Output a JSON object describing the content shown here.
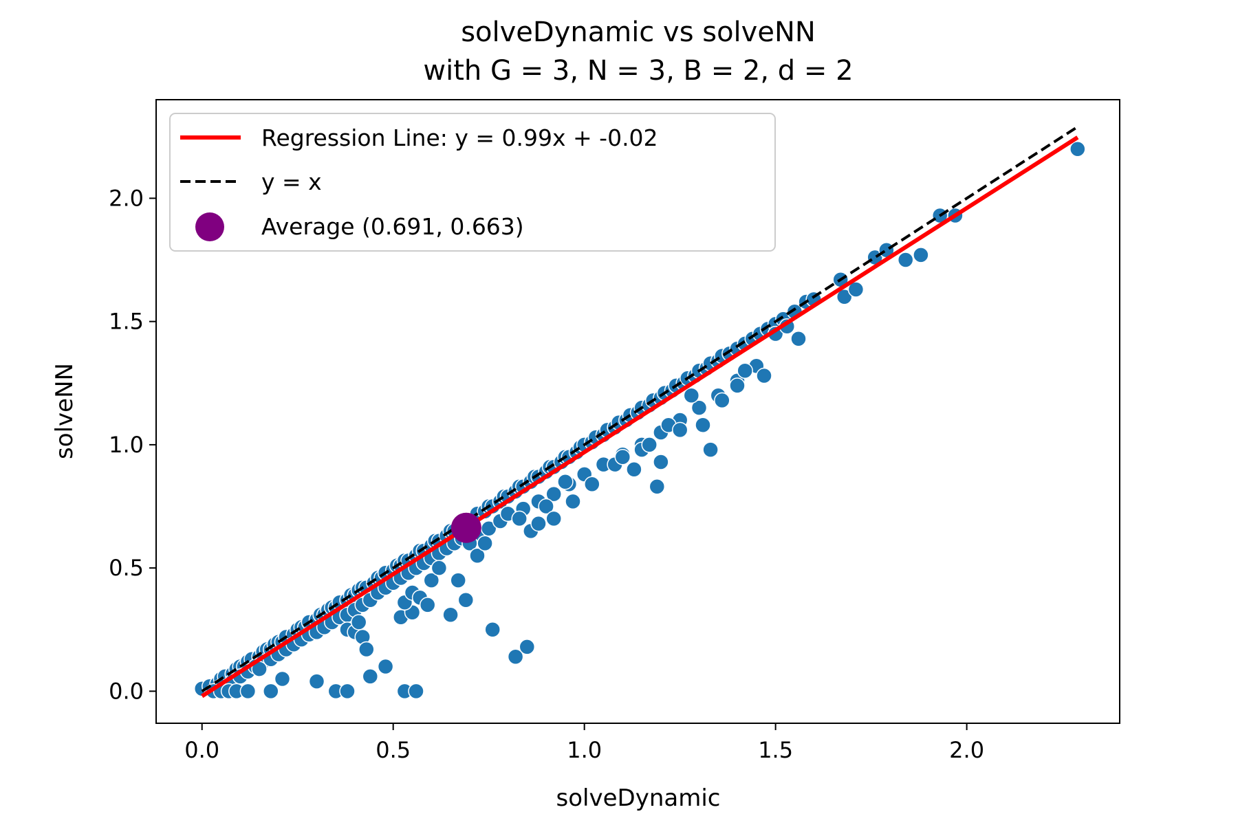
{
  "chart_data": {
    "type": "scatter",
    "title": "solveDynamic vs solveNN",
    "subtitle": "with G = 3, N = 3, B = 2, d = 2",
    "xlabel": "solveDynamic",
    "ylabel": "solveNN",
    "xlim": [
      -0.12,
      2.4
    ],
    "ylim": [
      -0.13,
      2.4
    ],
    "xticks": [
      0.0,
      0.5,
      1.0,
      1.5,
      2.0
    ],
    "yticks": [
      0.0,
      0.5,
      1.0,
      1.5,
      2.0
    ],
    "xtick_labels": [
      "0.0",
      "0.5",
      "1.0",
      "1.5",
      "2.0"
    ],
    "ytick_labels": [
      "0.0",
      "0.5",
      "1.0",
      "1.5",
      "2.0"
    ],
    "grid": false,
    "legend_position": "top-left",
    "colors": {
      "points": "#1f77b4",
      "point_edge": "#ffffff",
      "regression": "#ff0000",
      "identity": "#000000",
      "average": "#800080"
    },
    "regression": {
      "label": "Regression Line: y = 0.99x + -0.02",
      "slope": 0.99,
      "intercept": -0.02,
      "x_range": [
        0.0,
        2.29
      ]
    },
    "identity": {
      "label": "y = x",
      "x_range": [
        0.0,
        2.29
      ]
    },
    "average": {
      "label": "Average (0.691, 0.663)",
      "x": 0.691,
      "y": 0.663
    },
    "series": [
      {
        "points": [
          [
            0.0,
            0.01
          ],
          [
            0.02,
            0.02
          ],
          [
            0.04,
            0.03
          ],
          [
            0.05,
            0.05
          ],
          [
            0.06,
            0.06
          ],
          [
            0.08,
            0.07
          ],
          [
            0.09,
            0.09
          ],
          [
            0.1,
            0.1
          ],
          [
            0.11,
            0.1
          ],
          [
            0.12,
            0.12
          ],
          [
            0.13,
            0.13
          ],
          [
            0.15,
            0.14
          ],
          [
            0.16,
            0.16
          ],
          [
            0.17,
            0.17
          ],
          [
            0.18,
            0.17
          ],
          [
            0.19,
            0.19
          ],
          [
            0.2,
            0.2
          ],
          [
            0.21,
            0.2
          ],
          [
            0.22,
            0.22
          ],
          [
            0.24,
            0.23
          ],
          [
            0.25,
            0.25
          ],
          [
            0.26,
            0.26
          ],
          [
            0.27,
            0.26
          ],
          [
            0.28,
            0.28
          ],
          [
            0.3,
            0.29
          ],
          [
            0.31,
            0.31
          ],
          [
            0.32,
            0.31
          ],
          [
            0.33,
            0.33
          ],
          [
            0.34,
            0.34
          ],
          [
            0.35,
            0.34
          ],
          [
            0.36,
            0.36
          ],
          [
            0.38,
            0.37
          ],
          [
            0.39,
            0.39
          ],
          [
            0.4,
            0.39
          ],
          [
            0.41,
            0.41
          ],
          [
            0.42,
            0.42
          ],
          [
            0.43,
            0.42
          ],
          [
            0.45,
            0.44
          ],
          [
            0.46,
            0.46
          ],
          [
            0.47,
            0.46
          ],
          [
            0.48,
            0.48
          ],
          [
            0.5,
            0.49
          ],
          [
            0.51,
            0.51
          ],
          [
            0.52,
            0.51
          ],
          [
            0.53,
            0.53
          ],
          [
            0.54,
            0.53
          ],
          [
            0.56,
            0.55
          ],
          [
            0.57,
            0.57
          ],
          [
            0.58,
            0.57
          ],
          [
            0.6,
            0.59
          ],
          [
            0.61,
            0.61
          ],
          [
            0.62,
            0.61
          ],
          [
            0.64,
            0.63
          ],
          [
            0.65,
            0.65
          ],
          [
            0.66,
            0.65
          ],
          [
            0.68,
            0.67
          ],
          [
            0.7,
            0.69
          ],
          [
            0.71,
            0.7
          ],
          [
            0.72,
            0.72
          ],
          [
            0.74,
            0.73
          ],
          [
            0.75,
            0.75
          ],
          [
            0.76,
            0.75
          ],
          [
            0.78,
            0.77
          ],
          [
            0.79,
            0.79
          ],
          [
            0.8,
            0.79
          ],
          [
            0.82,
            0.81
          ],
          [
            0.83,
            0.83
          ],
          [
            0.84,
            0.83
          ],
          [
            0.86,
            0.85
          ],
          [
            0.87,
            0.87
          ],
          [
            0.88,
            0.87
          ],
          [
            0.9,
            0.89
          ],
          [
            0.91,
            0.91
          ],
          [
            0.92,
            0.91
          ],
          [
            0.94,
            0.93
          ],
          [
            0.95,
            0.95
          ],
          [
            0.96,
            0.95
          ],
          [
            0.98,
            0.97
          ],
          [
            0.99,
            0.99
          ],
          [
            1.0,
            1.0
          ],
          [
            1.02,
            1.01
          ],
          [
            1.03,
            1.03
          ],
          [
            1.05,
            1.04
          ],
          [
            1.06,
            1.06
          ],
          [
            1.08,
            1.07
          ],
          [
            1.09,
            1.09
          ],
          [
            1.11,
            1.1
          ],
          [
            1.12,
            1.12
          ],
          [
            1.14,
            1.13
          ],
          [
            1.15,
            1.15
          ],
          [
            1.17,
            1.16
          ],
          [
            1.18,
            1.18
          ],
          [
            1.2,
            1.19
          ],
          [
            1.21,
            1.21
          ],
          [
            1.23,
            1.22
          ],
          [
            1.24,
            1.24
          ],
          [
            1.26,
            1.25
          ],
          [
            1.27,
            1.27
          ],
          [
            1.29,
            1.28
          ],
          [
            1.3,
            1.3
          ],
          [
            1.32,
            1.31
          ],
          [
            1.33,
            1.33
          ],
          [
            1.35,
            1.34
          ],
          [
            1.36,
            1.36
          ],
          [
            1.38,
            1.37
          ],
          [
            1.4,
            1.39
          ],
          [
            1.42,
            1.41
          ],
          [
            1.44,
            1.43
          ],
          [
            1.46,
            1.45
          ],
          [
            1.48,
            1.47
          ],
          [
            1.5,
            1.49
          ],
          [
            1.52,
            1.51
          ],
          [
            1.55,
            1.54
          ],
          [
            1.58,
            1.58
          ],
          [
            1.6,
            1.59
          ],
          [
            1.67,
            1.67
          ],
          [
            1.76,
            1.76
          ],
          [
            1.79,
            1.79
          ],
          [
            1.93,
            1.93
          ],
          [
            0.05,
            0.02
          ],
          [
            0.08,
            0.04
          ],
          [
            0.1,
            0.06
          ],
          [
            0.12,
            0.08
          ],
          [
            0.14,
            0.1
          ],
          [
            0.16,
            0.12
          ],
          [
            0.18,
            0.13
          ],
          [
            0.2,
            0.15
          ],
          [
            0.22,
            0.17
          ],
          [
            0.24,
            0.19
          ],
          [
            0.26,
            0.21
          ],
          [
            0.28,
            0.23
          ],
          [
            0.3,
            0.24
          ],
          [
            0.32,
            0.26
          ],
          [
            0.34,
            0.28
          ],
          [
            0.36,
            0.3
          ],
          [
            0.38,
            0.31
          ],
          [
            0.4,
            0.33
          ],
          [
            0.42,
            0.35
          ],
          [
            0.44,
            0.37
          ],
          [
            0.46,
            0.4
          ],
          [
            0.48,
            0.42
          ],
          [
            0.5,
            0.44
          ],
          [
            0.52,
            0.46
          ],
          [
            0.54,
            0.48
          ],
          [
            0.56,
            0.5
          ],
          [
            0.58,
            0.52
          ],
          [
            0.6,
            0.54
          ],
          [
            0.62,
            0.56
          ],
          [
            0.64,
            0.58
          ],
          [
            0.66,
            0.6
          ],
          [
            0.68,
            0.62
          ],
          [
            0.72,
            0.64
          ],
          [
            0.75,
            0.66
          ],
          [
            0.78,
            0.69
          ],
          [
            0.8,
            0.72
          ],
          [
            0.84,
            0.74
          ],
          [
            0.88,
            0.77
          ],
          [
            0.92,
            0.8
          ],
          [
            0.96,
            0.84
          ],
          [
            1.0,
            0.88
          ],
          [
            1.05,
            0.92
          ],
          [
            1.1,
            0.96
          ],
          [
            1.15,
            1.0
          ],
          [
            1.2,
            1.05
          ],
          [
            1.25,
            1.1
          ],
          [
            1.3,
            1.15
          ],
          [
            1.35,
            1.2
          ],
          [
            1.4,
            1.26
          ],
          [
            1.45,
            1.32
          ],
          [
            0.03,
            0.0
          ],
          [
            0.05,
            0.0
          ],
          [
            0.07,
            0.0
          ],
          [
            0.09,
            0.0
          ],
          [
            0.12,
            0.0
          ],
          [
            0.18,
            0.0
          ],
          [
            0.35,
            0.0
          ],
          [
            0.38,
            0.0
          ],
          [
            0.53,
            0.0
          ],
          [
            0.56,
            0.0
          ],
          [
            0.15,
            0.09
          ],
          [
            0.21,
            0.05
          ],
          [
            0.3,
            0.04
          ],
          [
            0.38,
            0.25
          ],
          [
            0.4,
            0.24
          ],
          [
            0.41,
            0.28
          ],
          [
            0.42,
            0.22
          ],
          [
            0.44,
            0.06
          ],
          [
            0.48,
            0.1
          ],
          [
            0.43,
            0.17
          ],
          [
            0.52,
            0.3
          ],
          [
            0.55,
            0.32
          ],
          [
            0.53,
            0.36
          ],
          [
            0.55,
            0.4
          ],
          [
            0.57,
            0.38
          ],
          [
            0.59,
            0.35
          ],
          [
            0.6,
            0.45
          ],
          [
            0.62,
            0.5
          ],
          [
            0.65,
            0.31
          ],
          [
            0.67,
            0.45
          ],
          [
            0.69,
            0.37
          ],
          [
            0.7,
            0.6
          ],
          [
            0.72,
            0.55
          ],
          [
            0.74,
            0.6
          ],
          [
            0.76,
            0.25
          ],
          [
            0.82,
            0.14
          ],
          [
            0.85,
            0.18
          ],
          [
            0.83,
            0.7
          ],
          [
            0.86,
            0.65
          ],
          [
            0.88,
            0.68
          ],
          [
            0.9,
            0.75
          ],
          [
            0.92,
            0.7
          ],
          [
            0.95,
            0.85
          ],
          [
            0.97,
            0.77
          ],
          [
            1.02,
            0.84
          ],
          [
            1.08,
            0.92
          ],
          [
            1.1,
            0.95
          ],
          [
            1.13,
            0.9
          ],
          [
            1.15,
            0.98
          ],
          [
            1.17,
            1.0
          ],
          [
            1.19,
            0.83
          ],
          [
            1.2,
            0.93
          ],
          [
            1.22,
            1.08
          ],
          [
            1.25,
            1.06
          ],
          [
            1.28,
            1.2
          ],
          [
            1.31,
            1.08
          ],
          [
            1.33,
            0.98
          ],
          [
            1.36,
            1.18
          ],
          [
            1.4,
            1.24
          ],
          [
            1.42,
            1.3
          ],
          [
            1.47,
            1.28
          ],
          [
            1.5,
            1.45
          ],
          [
            1.53,
            1.48
          ],
          [
            1.56,
            1.43
          ],
          [
            1.68,
            1.6
          ],
          [
            1.71,
            1.63
          ],
          [
            1.84,
            1.75
          ],
          [
            1.88,
            1.77
          ],
          [
            1.97,
            1.93
          ],
          [
            2.29,
            2.2
          ]
        ]
      }
    ]
  }
}
